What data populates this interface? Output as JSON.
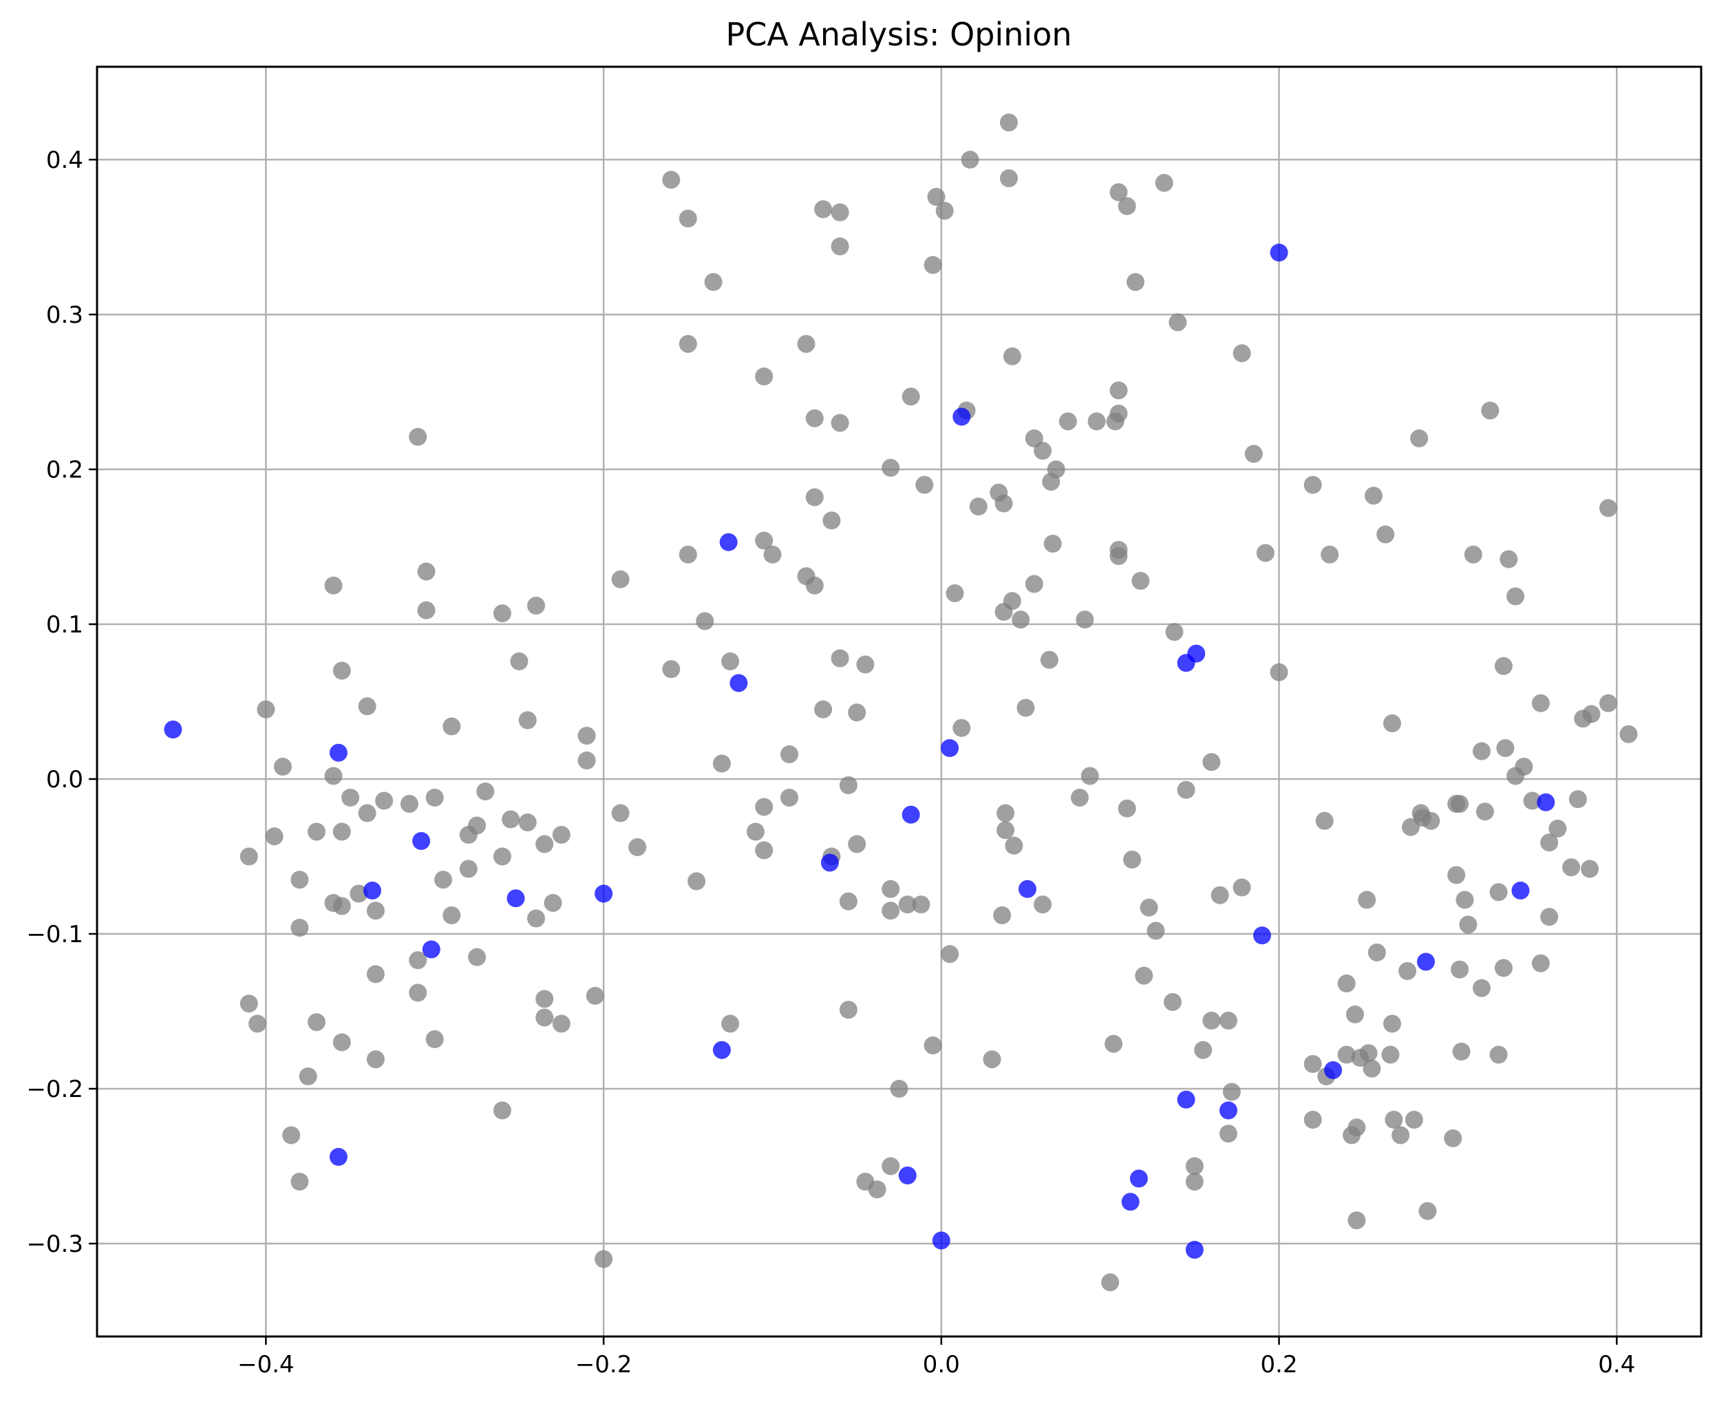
{
  "chart_data": {
    "type": "scatter",
    "title": "PCA Analysis: Opinion",
    "xlabel": "",
    "ylabel": "",
    "xlim": [
      -0.5,
      0.45
    ],
    "ylim": [
      -0.36,
      0.46
    ],
    "grid": true,
    "x_ticks": [
      -0.4,
      -0.2,
      0.0,
      0.2,
      0.4
    ],
    "x_tick_labels": [
      "−0.4",
      "−0.2",
      "0.0",
      "0.2",
      "0.4"
    ],
    "y_ticks": [
      -0.3,
      -0.2,
      -0.1,
      0.0,
      0.1,
      0.2,
      0.3,
      0.4
    ],
    "y_tick_labels": [
      "−0.3",
      "−0.2",
      "−0.1",
      "0.0",
      "0.1",
      "0.2",
      "0.3",
      "0.4"
    ],
    "series": [
      {
        "color": "#808080",
        "points": [
          [
            -0.41,
            -0.05
          ],
          [
            -0.4,
            0.045
          ],
          [
            -0.39,
            0.008
          ],
          [
            -0.36,
            0.125
          ],
          [
            -0.36,
            0.002
          ],
          [
            -0.355,
            0.07
          ],
          [
            -0.35,
            -0.012
          ],
          [
            -0.34,
            0.047
          ],
          [
            -0.33,
            -0.014
          ],
          [
            -0.31,
            0.221
          ],
          [
            -0.305,
            0.134
          ],
          [
            -0.305,
            0.109
          ],
          [
            -0.3,
            -0.012
          ],
          [
            -0.29,
            0.034
          ],
          [
            -0.27,
            -0.008
          ],
          [
            -0.26,
            0.107
          ],
          [
            -0.25,
            0.076
          ],
          [
            -0.245,
            0.038
          ],
          [
            -0.24,
            0.112
          ],
          [
            -0.21,
            0.028
          ],
          [
            -0.19,
            0.129
          ],
          [
            -0.16,
            0.387
          ],
          [
            -0.15,
            0.362
          ],
          [
            -0.135,
            0.321
          ],
          [
            -0.15,
            0.281
          ],
          [
            -0.105,
            0.26
          ],
          [
            -0.08,
            0.281
          ],
          [
            -0.07,
            0.368
          ],
          [
            -0.06,
            0.366
          ],
          [
            -0.06,
            0.344
          ],
          [
            -0.075,
            0.233
          ],
          [
            -0.06,
            0.23
          ],
          [
            -0.075,
            0.182
          ],
          [
            -0.065,
            0.167
          ],
          [
            -0.105,
            0.154
          ],
          [
            -0.1,
            0.145
          ],
          [
            -0.08,
            0.131
          ],
          [
            -0.075,
            0.125
          ],
          [
            -0.15,
            0.145
          ],
          [
            -0.14,
            0.102
          ],
          [
            -0.16,
            0.071
          ],
          [
            -0.125,
            0.076
          ],
          [
            -0.13,
            0.01
          ],
          [
            -0.06,
            0.078
          ],
          [
            -0.045,
            0.074
          ],
          [
            -0.07,
            0.045
          ],
          [
            -0.05,
            0.043
          ],
          [
            -0.09,
            0.016
          ],
          [
            -0.105,
            -0.018
          ],
          [
            -0.09,
            -0.012
          ],
          [
            -0.11,
            -0.034
          ],
          [
            -0.105,
            -0.046
          ],
          [
            -0.065,
            -0.05
          ],
          [
            -0.05,
            -0.042
          ],
          [
            -0.055,
            -0.004
          ],
          [
            -0.145,
            -0.066
          ],
          [
            -0.19,
            -0.022
          ],
          [
            -0.18,
            -0.044
          ],
          [
            -0.21,
            0.012
          ],
          [
            -0.225,
            -0.036
          ],
          [
            -0.235,
            -0.042
          ],
          [
            -0.24,
            -0.09
          ],
          [
            -0.23,
            -0.08
          ],
          [
            -0.255,
            -0.026
          ],
          [
            -0.26,
            -0.05
          ],
          [
            -0.245,
            -0.028
          ],
          [
            -0.28,
            -0.036
          ],
          [
            -0.275,
            -0.03
          ],
          [
            -0.28,
            -0.058
          ],
          [
            -0.275,
            -0.115
          ],
          [
            -0.29,
            -0.088
          ],
          [
            -0.295,
            -0.065
          ],
          [
            -0.31,
            -0.117
          ],
          [
            -0.31,
            -0.138
          ],
          [
            -0.3,
            -0.168
          ],
          [
            -0.315,
            -0.016
          ],
          [
            -0.34,
            -0.022
          ],
          [
            -0.345,
            -0.074
          ],
          [
            -0.335,
            -0.085
          ],
          [
            -0.355,
            -0.082
          ],
          [
            -0.36,
            -0.08
          ],
          [
            -0.355,
            -0.034
          ],
          [
            -0.37,
            -0.034
          ],
          [
            -0.38,
            -0.065
          ],
          [
            -0.38,
            -0.096
          ],
          [
            -0.395,
            -0.037
          ],
          [
            -0.41,
            -0.145
          ],
          [
            -0.405,
            -0.158
          ],
          [
            -0.37,
            -0.157
          ],
          [
            -0.355,
            -0.17
          ],
          [
            -0.335,
            -0.126
          ],
          [
            -0.335,
            -0.181
          ],
          [
            -0.375,
            -0.192
          ],
          [
            -0.385,
            -0.23
          ],
          [
            -0.38,
            -0.26
          ],
          [
            -0.26,
            -0.214
          ],
          [
            -0.235,
            -0.142
          ],
          [
            -0.235,
            -0.154
          ],
          [
            -0.225,
            -0.158
          ],
          [
            -0.205,
            -0.14
          ],
          [
            -0.2,
            -0.31
          ],
          [
            -0.125,
            -0.158
          ],
          [
            -0.055,
            -0.149
          ],
          [
            -0.055,
            -0.079
          ],
          [
            -0.03,
            -0.071
          ],
          [
            -0.03,
            -0.085
          ],
          [
            -0.02,
            -0.081
          ],
          [
            -0.012,
            -0.081
          ],
          [
            -0.005,
            -0.172
          ],
          [
            0.005,
            -0.113
          ],
          [
            -0.025,
            -0.2
          ],
          [
            -0.03,
            -0.25
          ],
          [
            -0.045,
            -0.26
          ],
          [
            -0.038,
            -0.265
          ],
          [
            0.03,
            -0.181
          ],
          [
            -0.03,
            0.201
          ],
          [
            -0.01,
            0.19
          ],
          [
            -0.018,
            0.247
          ],
          [
            0.015,
            0.238
          ],
          [
            -0.005,
            0.332
          ],
          [
            -0.003,
            0.376
          ],
          [
            0.002,
            0.367
          ],
          [
            0.017,
            0.4
          ],
          [
            0.04,
            0.424
          ],
          [
            0.04,
            0.388
          ],
          [
            0.042,
            0.273
          ],
          [
            0.022,
            0.176
          ],
          [
            0.034,
            0.185
          ],
          [
            0.037,
            0.178
          ],
          [
            0.055,
            0.22
          ],
          [
            0.06,
            0.212
          ],
          [
            0.068,
            0.2
          ],
          [
            0.065,
            0.192
          ],
          [
            0.066,
            0.152
          ],
          [
            0.075,
            0.231
          ],
          [
            0.092,
            0.231
          ],
          [
            0.105,
            0.251
          ],
          [
            0.105,
            0.236
          ],
          [
            0.103,
            0.231
          ],
          [
            0.105,
            0.379
          ],
          [
            0.11,
            0.37
          ],
          [
            0.115,
            0.321
          ],
          [
            0.132,
            0.385
          ],
          [
            0.14,
            0.295
          ],
          [
            0.178,
            0.275
          ],
          [
            0.185,
            0.21
          ],
          [
            0.192,
            0.146
          ],
          [
            0.2,
            0.069
          ],
          [
            0.138,
            0.095
          ],
          [
            0.16,
            0.011
          ],
          [
            0.145,
            -0.007
          ],
          [
            0.105,
            0.148
          ],
          [
            0.105,
            0.144
          ],
          [
            0.118,
            0.128
          ],
          [
            0.008,
            0.12
          ],
          [
            0.042,
            0.115
          ],
          [
            0.037,
            0.108
          ],
          [
            0.047,
            0.103
          ],
          [
            0.055,
            0.126
          ],
          [
            0.064,
            0.077
          ],
          [
            0.085,
            0.103
          ],
          [
            0.05,
            0.046
          ],
          [
            0.012,
            0.033
          ],
          [
            0.088,
            0.002
          ],
          [
            0.082,
            -0.012
          ],
          [
            0.11,
            -0.019
          ],
          [
            0.038,
            -0.022
          ],
          [
            0.038,
            -0.033
          ],
          [
            0.043,
            -0.043
          ],
          [
            0.06,
            -0.081
          ],
          [
            0.036,
            -0.088
          ],
          [
            0.113,
            -0.052
          ],
          [
            0.123,
            -0.083
          ],
          [
            0.127,
            -0.098
          ],
          [
            0.12,
            -0.127
          ],
          [
            0.137,
            -0.144
          ],
          [
            0.165,
            -0.075
          ],
          [
            0.178,
            -0.07
          ],
          [
            0.16,
            -0.156
          ],
          [
            0.17,
            -0.156
          ],
          [
            0.155,
            -0.175
          ],
          [
            0.172,
            -0.202
          ],
          [
            0.17,
            -0.229
          ],
          [
            0.15,
            -0.25
          ],
          [
            0.15,
            -0.26
          ],
          [
            0.102,
            -0.171
          ],
          [
            0.1,
            -0.325
          ],
          [
            0.22,
            0.19
          ],
          [
            0.23,
            0.145
          ],
          [
            0.256,
            0.183
          ],
          [
            0.263,
            0.158
          ],
          [
            0.283,
            0.22
          ],
          [
            0.325,
            0.238
          ],
          [
            0.315,
            0.145
          ],
          [
            0.336,
            0.142
          ],
          [
            0.34,
            0.118
          ],
          [
            0.333,
            0.073
          ],
          [
            0.355,
            0.049
          ],
          [
            0.395,
            0.175
          ],
          [
            0.395,
            0.049
          ],
          [
            0.38,
            0.039
          ],
          [
            0.385,
            0.042
          ],
          [
            0.407,
            0.029
          ],
          [
            0.267,
            0.036
          ],
          [
            0.32,
            0.018
          ],
          [
            0.334,
            0.02
          ],
          [
            0.345,
            0.008
          ],
          [
            0.34,
            0.002
          ],
          [
            0.35,
            -0.014
          ],
          [
            0.365,
            -0.032
          ],
          [
            0.377,
            -0.013
          ],
          [
            0.36,
            -0.041
          ],
          [
            0.373,
            -0.057
          ],
          [
            0.384,
            -0.058
          ],
          [
            0.36,
            -0.089
          ],
          [
            0.355,
            -0.119
          ],
          [
            0.333,
            -0.122
          ],
          [
            0.33,
            -0.073
          ],
          [
            0.305,
            -0.016
          ],
          [
            0.307,
            -0.016
          ],
          [
            0.322,
            -0.021
          ],
          [
            0.284,
            -0.022
          ],
          [
            0.285,
            -0.025
          ],
          [
            0.29,
            -0.027
          ],
          [
            0.278,
            -0.031
          ],
          [
            0.227,
            -0.027
          ],
          [
            0.305,
            -0.062
          ],
          [
            0.31,
            -0.078
          ],
          [
            0.312,
            -0.094
          ],
          [
            0.307,
            -0.123
          ],
          [
            0.32,
            -0.135
          ],
          [
            0.276,
            -0.124
          ],
          [
            0.258,
            -0.112
          ],
          [
            0.252,
            -0.078
          ],
          [
            0.24,
            -0.132
          ],
          [
            0.245,
            -0.152
          ],
          [
            0.267,
            -0.158
          ],
          [
            0.308,
            -0.176
          ],
          [
            0.33,
            -0.178
          ],
          [
            0.22,
            -0.184
          ],
          [
            0.228,
            -0.192
          ],
          [
            0.24,
            -0.178
          ],
          [
            0.248,
            -0.18
          ],
          [
            0.253,
            -0.177
          ],
          [
            0.255,
            -0.187
          ],
          [
            0.266,
            -0.178
          ],
          [
            0.22,
            -0.22
          ],
          [
            0.246,
            -0.225
          ],
          [
            0.243,
            -0.23
          ],
          [
            0.268,
            -0.22
          ],
          [
            0.272,
            -0.23
          ],
          [
            0.28,
            -0.22
          ],
          [
            0.303,
            -0.232
          ],
          [
            0.246,
            -0.285
          ],
          [
            0.288,
            -0.279
          ]
        ]
      },
      {
        "color": "#0000ff",
        "points": [
          [
            -0.455,
            0.032
          ],
          [
            -0.357,
            0.017
          ],
          [
            -0.308,
            -0.04
          ],
          [
            -0.337,
            -0.072
          ],
          [
            -0.302,
            -0.11
          ],
          [
            -0.252,
            -0.077
          ],
          [
            -0.2,
            -0.074
          ],
          [
            -0.126,
            0.153
          ],
          [
            -0.12,
            0.062
          ],
          [
            -0.066,
            -0.054
          ],
          [
            -0.018,
            -0.023
          ],
          [
            0.005,
            0.02
          ],
          [
            0.012,
            0.234
          ],
          [
            0.051,
            -0.071
          ],
          [
            -0.02,
            -0.256
          ],
          [
            0.0,
            -0.298
          ],
          [
            -0.13,
            -0.175
          ],
          [
            -0.357,
            -0.244
          ],
          [
            0.2,
            0.34
          ],
          [
            0.145,
            0.075
          ],
          [
            0.151,
            0.081
          ],
          [
            0.19,
            -0.101
          ],
          [
            0.145,
            -0.207
          ],
          [
            0.17,
            -0.214
          ],
          [
            0.117,
            -0.258
          ],
          [
            0.112,
            -0.273
          ],
          [
            0.15,
            -0.304
          ],
          [
            0.232,
            -0.188
          ],
          [
            0.287,
            -0.118
          ],
          [
            0.343,
            -0.072
          ],
          [
            0.358,
            -0.015
          ]
        ]
      }
    ]
  }
}
